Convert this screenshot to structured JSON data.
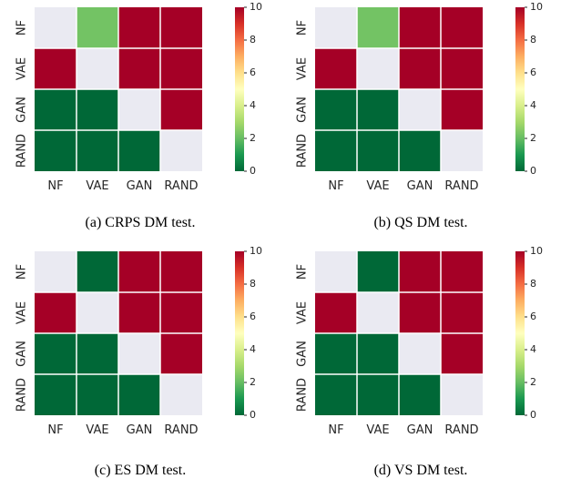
{
  "colors": {
    "scale_low": "#006837",
    "scale_mid": "#ffffbf",
    "scale_high": "#a50026",
    "diagonal": "#eaeaf2"
  },
  "chart_data": [
    {
      "type": "heatmap",
      "caption": "(a) CRPS DM test.",
      "row_labels": [
        "NF",
        "VAE",
        "GAN",
        "RAND"
      ],
      "col_labels": [
        "NF",
        "VAE",
        "GAN",
        "RAND"
      ],
      "values": [
        [
          null,
          2.2,
          10,
          10
        ],
        [
          10,
          null,
          10,
          10
        ],
        [
          0,
          0,
          null,
          10
        ],
        [
          0,
          0,
          0,
          null
        ]
      ],
      "colorbar": {
        "min": 0,
        "max": 10,
        "ticks": [
          "0",
          "2",
          "4",
          "6",
          "8",
          "10"
        ]
      }
    },
    {
      "type": "heatmap",
      "caption": "(b) QS DM test.",
      "row_labels": [
        "NF",
        "VAE",
        "GAN",
        "RAND"
      ],
      "col_labels": [
        "NF",
        "VAE",
        "GAN",
        "RAND"
      ],
      "values": [
        [
          null,
          2.2,
          10,
          10
        ],
        [
          10,
          null,
          10,
          10
        ],
        [
          0,
          0,
          null,
          10
        ],
        [
          0,
          0,
          0,
          null
        ]
      ],
      "colorbar": {
        "min": 0,
        "max": 10,
        "ticks": [
          "0",
          "2",
          "4",
          "6",
          "8",
          "10"
        ]
      }
    },
    {
      "type": "heatmap",
      "caption": "(c) ES DM test.",
      "row_labels": [
        "NF",
        "VAE",
        "GAN",
        "RAND"
      ],
      "col_labels": [
        "NF",
        "VAE",
        "GAN",
        "RAND"
      ],
      "values": [
        [
          null,
          0,
          10,
          10
        ],
        [
          10,
          null,
          10,
          10
        ],
        [
          0,
          0,
          null,
          10
        ],
        [
          0,
          0,
          0,
          null
        ]
      ],
      "colorbar": {
        "min": 0,
        "max": 10,
        "ticks": [
          "0",
          "2",
          "4",
          "6",
          "8",
          "10"
        ]
      }
    },
    {
      "type": "heatmap",
      "caption": "(d) VS DM test.",
      "row_labels": [
        "NF",
        "VAE",
        "GAN",
        "RAND"
      ],
      "col_labels": [
        "NF",
        "VAE",
        "GAN",
        "RAND"
      ],
      "values": [
        [
          null,
          0,
          10,
          10
        ],
        [
          10,
          null,
          10,
          10
        ],
        [
          0,
          0,
          null,
          10
        ],
        [
          0,
          0,
          0,
          null
        ]
      ],
      "colorbar": {
        "min": 0,
        "max": 10,
        "ticks": [
          "0",
          "2",
          "4",
          "6",
          "8",
          "10"
        ]
      }
    }
  ]
}
